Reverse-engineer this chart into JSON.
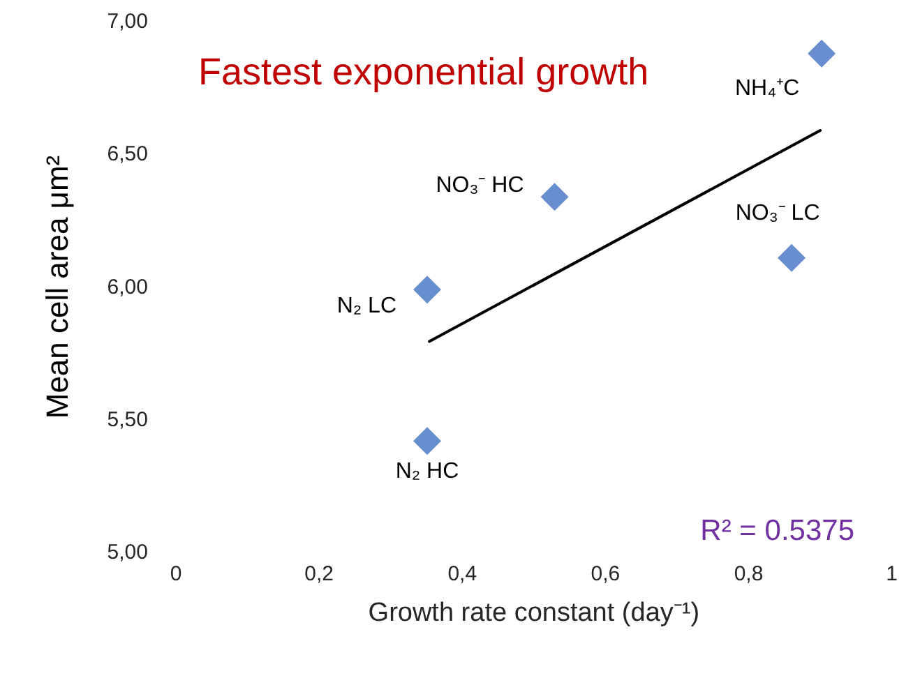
{
  "chart_data": {
    "type": "scatter",
    "title": "Fastest exponential growth",
    "xlabel": "Growth rate constant (day⁻¹)",
    "ylabel": "Mean cell area μm²",
    "x": [
      0.902,
      0.529,
      0.86,
      0.351,
      0.351
    ],
    "series": [
      {
        "color": "#4472c4",
        "values": [
          6.88,
          6.34,
          6.11,
          5.99,
          5.42
        ],
        "marker": "diamond"
      },
      {
        "type": "line",
        "color": "#000000",
        "x": [
          0.354,
          0.9
        ],
        "values": [
          5.795,
          6.59
        ],
        "marker": "none",
        "line_style": "solid"
      }
    ],
    "xlim": [
      0,
      1
    ],
    "xticks": [
      0,
      {
        "value": 0.2,
        "label": "0,2"
      },
      {
        "value": 0.4,
        "label": "0,4"
      },
      {
        "value": 0.6,
        "label": "0,6"
      },
      {
        "value": 0.8,
        "label": "0,8"
      },
      1
    ],
    "ylim": [
      5,
      7
    ],
    "yticks": [
      {
        "value": 5,
        "label": "5,00"
      },
      {
        "value": 5.5,
        "label": "5,50"
      },
      {
        "value": 6,
        "label": "6,00"
      },
      {
        "value": 6.5,
        "label": "6,50"
      },
      {
        "value": 7,
        "label": "7,00"
      }
    ],
    "grid": false,
    "annotations": [
      {
        "text": "NH₄⁺C",
        "x": 0.902,
        "y": 6.88
      },
      {
        "text": "NO₃⁻ HC",
        "x": 0.529,
        "y": 6.34
      },
      {
        "text": "NO₃⁻ LC",
        "x": 0.86,
        "y": 6.11
      },
      {
        "text": "N₂ LC",
        "x": 0.351,
        "y": 5.99
      },
      {
        "text": "N₂ HC",
        "x": 0.351,
        "y": 5.42
      },
      "R² = 0.5375"
    ]
  }
}
